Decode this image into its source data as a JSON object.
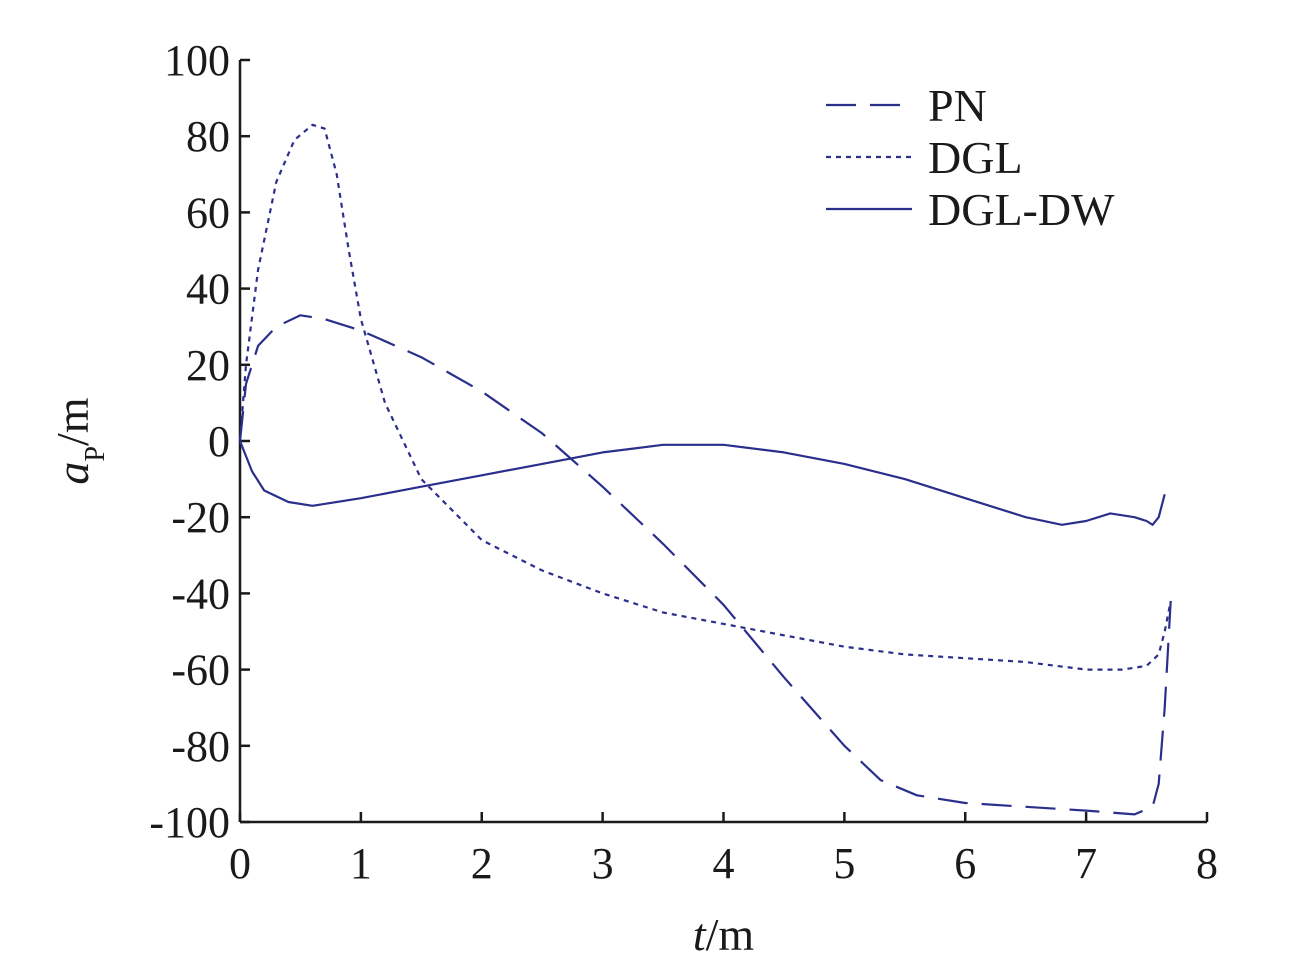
{
  "chart_data": {
    "type": "line",
    "xlabel": {
      "italic": "t",
      "rest": "/m"
    },
    "ylabel": {
      "italic": "a",
      "sub": "P",
      "rest": "/m"
    },
    "xlim": [
      0,
      8
    ],
    "ylim": [
      -100,
      100
    ],
    "xticks": [
      0,
      1,
      2,
      3,
      4,
      5,
      6,
      7,
      8
    ],
    "xtick_labels": [
      "0",
      "1",
      "2",
      "3",
      "4",
      "5",
      "6",
      "7",
      "8"
    ],
    "yticks": [
      100,
      80,
      60,
      40,
      20,
      0,
      -20,
      -40,
      -60,
      -80,
      -100
    ],
    "ytick_labels": [
      "100",
      "80",
      "60",
      "40",
      "20",
      "0",
      "-20",
      "-40",
      "-60",
      "-80",
      "-100"
    ],
    "grid": false,
    "legend_position": "top-right",
    "line_color": "#2b2f8c",
    "series": [
      {
        "name": "PN",
        "dash": "dashed",
        "x": [
          0,
          0.05,
          0.15,
          0.3,
          0.5,
          0.7,
          1.0,
          1.5,
          2.0,
          2.5,
          3.0,
          3.5,
          4.0,
          4.5,
          5.0,
          5.3,
          5.6,
          6.0,
          6.5,
          7.0,
          7.4,
          7.55,
          7.6,
          7.65,
          7.7
        ],
        "y": [
          0,
          15,
          25,
          30,
          33,
          32,
          29,
          22,
          13,
          2,
          -12,
          -27,
          -43,
          -62,
          -80,
          -89,
          -93,
          -95,
          -96,
          -97,
          -98,
          -96,
          -90,
          -70,
          -42
        ]
      },
      {
        "name": "DGL",
        "dash": "dotted",
        "x": [
          0,
          0.05,
          0.15,
          0.3,
          0.45,
          0.6,
          0.7,
          0.8,
          0.9,
          1.0,
          1.2,
          1.5,
          2.0,
          2.5,
          3.0,
          3.5,
          4.0,
          4.5,
          5.0,
          5.5,
          6.0,
          6.5,
          7.0,
          7.3,
          7.5,
          7.6,
          7.65,
          7.7
        ],
        "y": [
          0,
          20,
          45,
          68,
          79,
          83,
          82,
          70,
          50,
          32,
          10,
          -10,
          -26,
          -34,
          -40,
          -45,
          -48,
          -51,
          -54,
          -56,
          -57,
          -58,
          -60,
          -60,
          -59,
          -56,
          -50,
          -42
        ]
      },
      {
        "name": "DGL-DW",
        "dash": "solid",
        "x": [
          0,
          0.1,
          0.2,
          0.4,
          0.6,
          1.0,
          1.5,
          2.0,
          2.5,
          3.0,
          3.5,
          4.0,
          4.5,
          5.0,
          5.5,
          6.0,
          6.5,
          6.8,
          7.0,
          7.2,
          7.4,
          7.5,
          7.55,
          7.6,
          7.65
        ],
        "y": [
          0,
          -8,
          -13,
          -16,
          -17,
          -15,
          -12,
          -9,
          -6,
          -3,
          -1,
          -1,
          -3,
          -6,
          -10,
          -15,
          -20,
          -22,
          -21,
          -19,
          -20,
          -21,
          -22,
          -20,
          -14
        ]
      }
    ]
  }
}
